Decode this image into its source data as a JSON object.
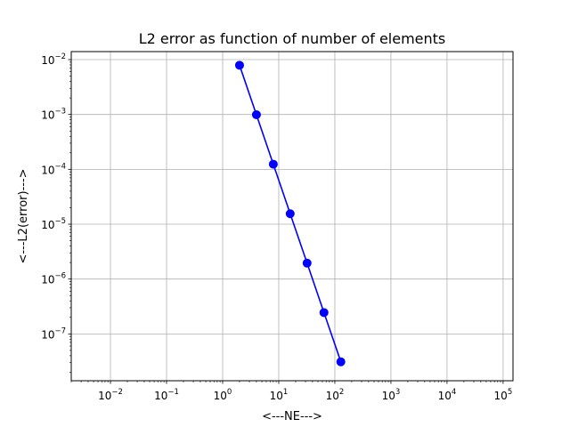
{
  "chart_data": {
    "type": "line",
    "title": "L2 error as function of number of elements",
    "xlabel": "<---NE--->",
    "ylabel": "<---L2(error)--->",
    "xscale": "log",
    "yscale": "log",
    "xlim": [
      0.002,
      150000
    ],
    "ylim": [
      1.4e-08,
      0.014
    ],
    "grid": true,
    "x_ticks": [
      {
        "value": 0.01,
        "base": "10",
        "exp": "−2"
      },
      {
        "value": 0.1,
        "base": "10",
        "exp": "−1"
      },
      {
        "value": 1,
        "base": "10",
        "exp": "0"
      },
      {
        "value": 10,
        "base": "10",
        "exp": "1"
      },
      {
        "value": 100,
        "base": "10",
        "exp": "2"
      },
      {
        "value": 1000,
        "base": "10",
        "exp": "3"
      },
      {
        "value": 10000,
        "base": "10",
        "exp": "4"
      },
      {
        "value": 100000,
        "base": "10",
        "exp": "5"
      }
    ],
    "y_ticks": [
      {
        "value": 1e-07,
        "base": "10",
        "exp": "−7"
      },
      {
        "value": 1e-06,
        "base": "10",
        "exp": "−6"
      },
      {
        "value": 1e-05,
        "base": "10",
        "exp": "−5"
      },
      {
        "value": 0.0001,
        "base": "10",
        "exp": "−4"
      },
      {
        "value": 0.001,
        "base": "10",
        "exp": "−3"
      },
      {
        "value": 0.01,
        "base": "10",
        "exp": "−2"
      }
    ],
    "series": [
      {
        "color": "#0000ff",
        "marker": "circle",
        "x": [
          2,
          4,
          8,
          16,
          32,
          64,
          128
        ],
        "y": [
          0.0079,
          0.00099,
          0.000124,
          1.55e-05,
          1.95e-06,
          2.45e-07,
          3.1e-08
        ]
      }
    ]
  }
}
